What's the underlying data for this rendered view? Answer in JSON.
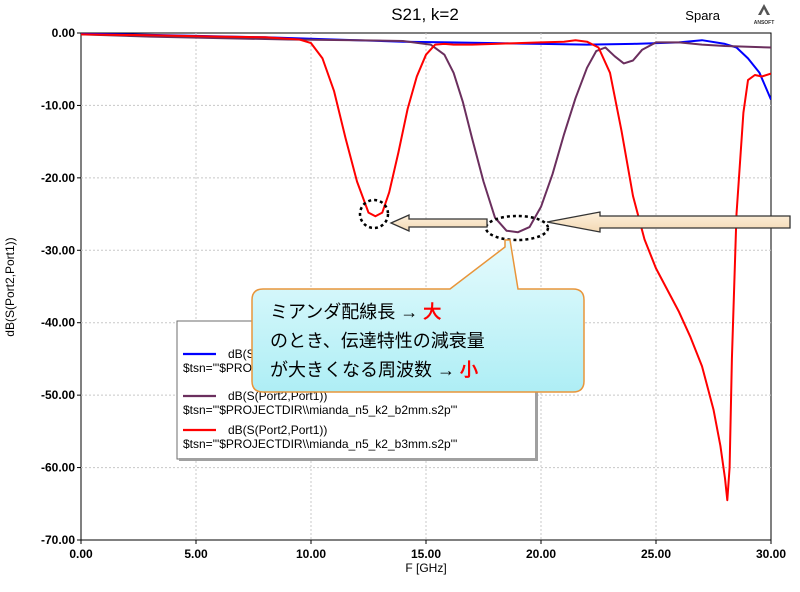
{
  "header": {
    "title": "S21, k=2",
    "app_label": "Spara",
    "logo_text": "ANSOFT"
  },
  "callout": {
    "line1_text": "ミアンダ配線長 → ",
    "line1_emphasis": "大",
    "line2_text": "のとき、伝達特性の減衰量",
    "line3_text": "が大きくなる周波数 → ",
    "line3_emphasis": "小",
    "emphasis_color": "#ff0000"
  },
  "legend": {
    "entries": [
      {
        "label": "dB(S(Port2,Port1))",
        "source": "$tsn=\"'$PROJECTDIR\\\\mianda_n5_k2_b1mm.s2p'\"",
        "color": "#0000ff"
      },
      {
        "label": "dB(S(Port2,Port1))",
        "source": "$tsn=\"'$PROJECTDIR\\\\mianda_n5_k2_b2mm.s2p'\"",
        "color": "#6b2f5e"
      },
      {
        "label": "dB(S(Port2,Port1))",
        "source": "$tsn=\"'$PROJECTDIR\\\\mianda_n5_k2_b3mm.s2p'\"",
        "color": "#ff0000"
      }
    ]
  },
  "chart_data": {
    "type": "line",
    "title": "S21, k=2",
    "xlabel": "F [GHz]",
    "ylabel": "dB(S(Port2,Port1))",
    "xlim": [
      0,
      30
    ],
    "ylim": [
      -70,
      0
    ],
    "x_ticks": [
      "0.00",
      "5.00",
      "10.00",
      "15.00",
      "20.00",
      "25.00",
      "30.00"
    ],
    "y_ticks": [
      "0.00",
      "-10.00",
      "-20.00",
      "-30.00",
      "-40.00",
      "-50.00",
      "-60.00",
      "-70.00"
    ],
    "grid": true,
    "legend_position": "lower-left",
    "series": [
      {
        "color": "#0000ff",
        "x": [
          0,
          2,
          5,
          8,
          10,
          12,
          14,
          16,
          18,
          20,
          22,
          24,
          26,
          27,
          28,
          28.5,
          29,
          29.5,
          30
        ],
        "y": [
          -0.1,
          -0.2,
          -0.4,
          -0.6,
          -0.8,
          -1.0,
          -1.2,
          -1.3,
          -1.4,
          -1.5,
          -1.6,
          -1.5,
          -1.3,
          -1.0,
          -1.5,
          -2.0,
          -3.5,
          -5.5,
          -9.2
        ]
      },
      {
        "color": "#6b2f5e",
        "x": [
          0,
          3,
          6,
          9,
          12,
          14,
          15.2,
          15.8,
          16.2,
          16.6,
          17.0,
          17.5,
          18.0,
          18.5,
          19.0,
          19.5,
          20.0,
          20.5,
          21.0,
          21.5,
          22.0,
          22.4,
          22.8,
          23.2,
          23.6,
          24.0,
          24.4,
          25.0,
          26.0,
          27.0,
          28.0,
          29.0,
          30.0
        ],
        "y": [
          -0.2,
          -0.5,
          -0.7,
          -0.9,
          -1.0,
          -1.1,
          -1.6,
          -3.0,
          -5.5,
          -9.5,
          -14.5,
          -20.5,
          -25.5,
          -27.3,
          -27.5,
          -26.8,
          -24.0,
          -19.5,
          -14.0,
          -9.0,
          -4.8,
          -2.5,
          -2.0,
          -3.2,
          -4.2,
          -3.8,
          -2.3,
          -1.3,
          -1.3,
          -1.6,
          -1.8,
          -1.9,
          -2.0
        ]
      },
      {
        "color": "#ff0000",
        "x": [
          0,
          3,
          6,
          8,
          9.5,
          10.0,
          10.5,
          11.0,
          11.5,
          12.0,
          12.5,
          12.8,
          13.1,
          13.4,
          13.8,
          14.2,
          14.6,
          15.0,
          15.4,
          15.8,
          16.2,
          17.0,
          18.0,
          19.0,
          20.0,
          21.0,
          21.5,
          22.0,
          22.5,
          23.0,
          23.5,
          24.0,
          24.5,
          25.0,
          25.5,
          26.0,
          26.5,
          27.0,
          27.5,
          27.8,
          28.0,
          28.1,
          28.2,
          28.3,
          28.5,
          28.8,
          29.0,
          29.3,
          29.6,
          30.0
        ],
        "y": [
          -0.2,
          -0.3,
          -0.5,
          -0.6,
          -0.9,
          -1.4,
          -3.5,
          -8.0,
          -14.5,
          -20.5,
          -24.8,
          -25.3,
          -24.8,
          -22.0,
          -16.5,
          -10.5,
          -6.0,
          -3.0,
          -1.6,
          -1.5,
          -1.6,
          -1.6,
          -1.5,
          -1.4,
          -1.3,
          -1.2,
          -1.0,
          -1.2,
          -2.0,
          -5.5,
          -13.5,
          -22.5,
          -28.5,
          -32.5,
          -35.5,
          -38.5,
          -42.0,
          -46.0,
          -52.0,
          -57.0,
          -61.5,
          -64.5,
          -60.0,
          -45.0,
          -25.0,
          -11.0,
          -6.5,
          -5.8,
          -6.0,
          -5.6
        ]
      }
    ]
  }
}
